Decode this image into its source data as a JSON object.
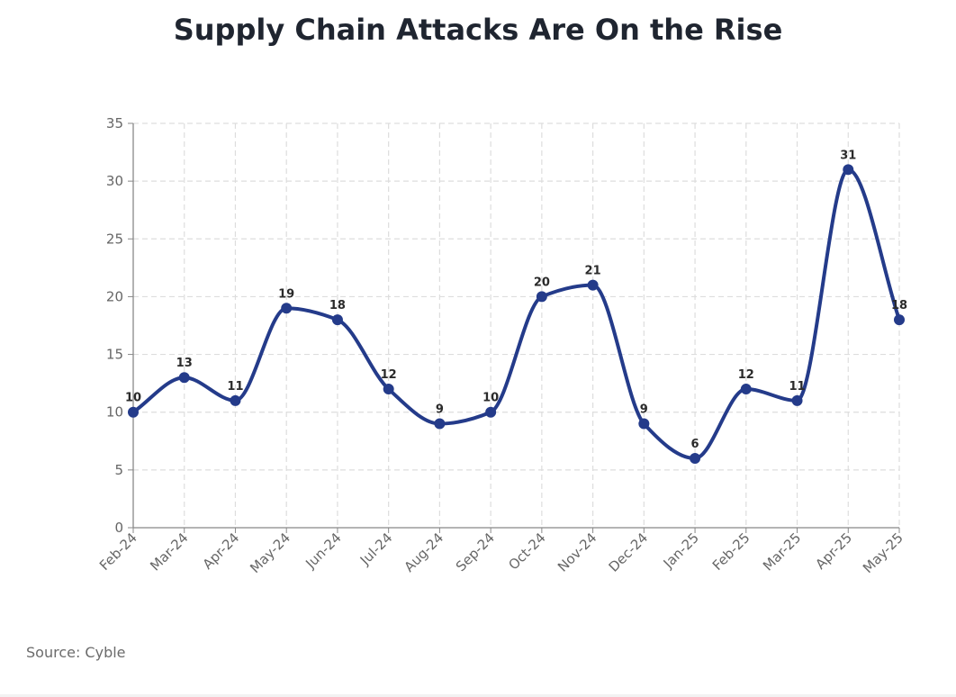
{
  "page": {
    "source_text": "Source: Cyble"
  },
  "chart_data": {
    "type": "line",
    "title": "Supply Chain Attacks Are On the Rise",
    "xlabel": "",
    "ylabel": "",
    "categories": [
      "Feb-24",
      "Mar-24",
      "Apr-24",
      "May-24",
      "Jun-24",
      "Jul-24",
      "Aug-24",
      "Sep-24",
      "Oct-24",
      "Nov-24",
      "Dec-24",
      "Jan-25",
      "Feb-25",
      "Mar-25",
      "Apr-25",
      "May-25"
    ],
    "series": [
      {
        "values": [
          10,
          13,
          11,
          19,
          18,
          12,
          9,
          10,
          20,
          21,
          9,
          6,
          12,
          11,
          31,
          18
        ],
        "color": "#243b8a"
      }
    ],
    "ylim": [
      0,
      35
    ],
    "yticks": [
      0,
      5,
      10,
      15,
      20,
      25,
      30,
      35
    ],
    "grid": true,
    "data_labels": true,
    "smooth": true,
    "legend": "none",
    "colors": {
      "axis": "#888888",
      "grid": "#dddddd",
      "title": "#1f2530"
    }
  }
}
